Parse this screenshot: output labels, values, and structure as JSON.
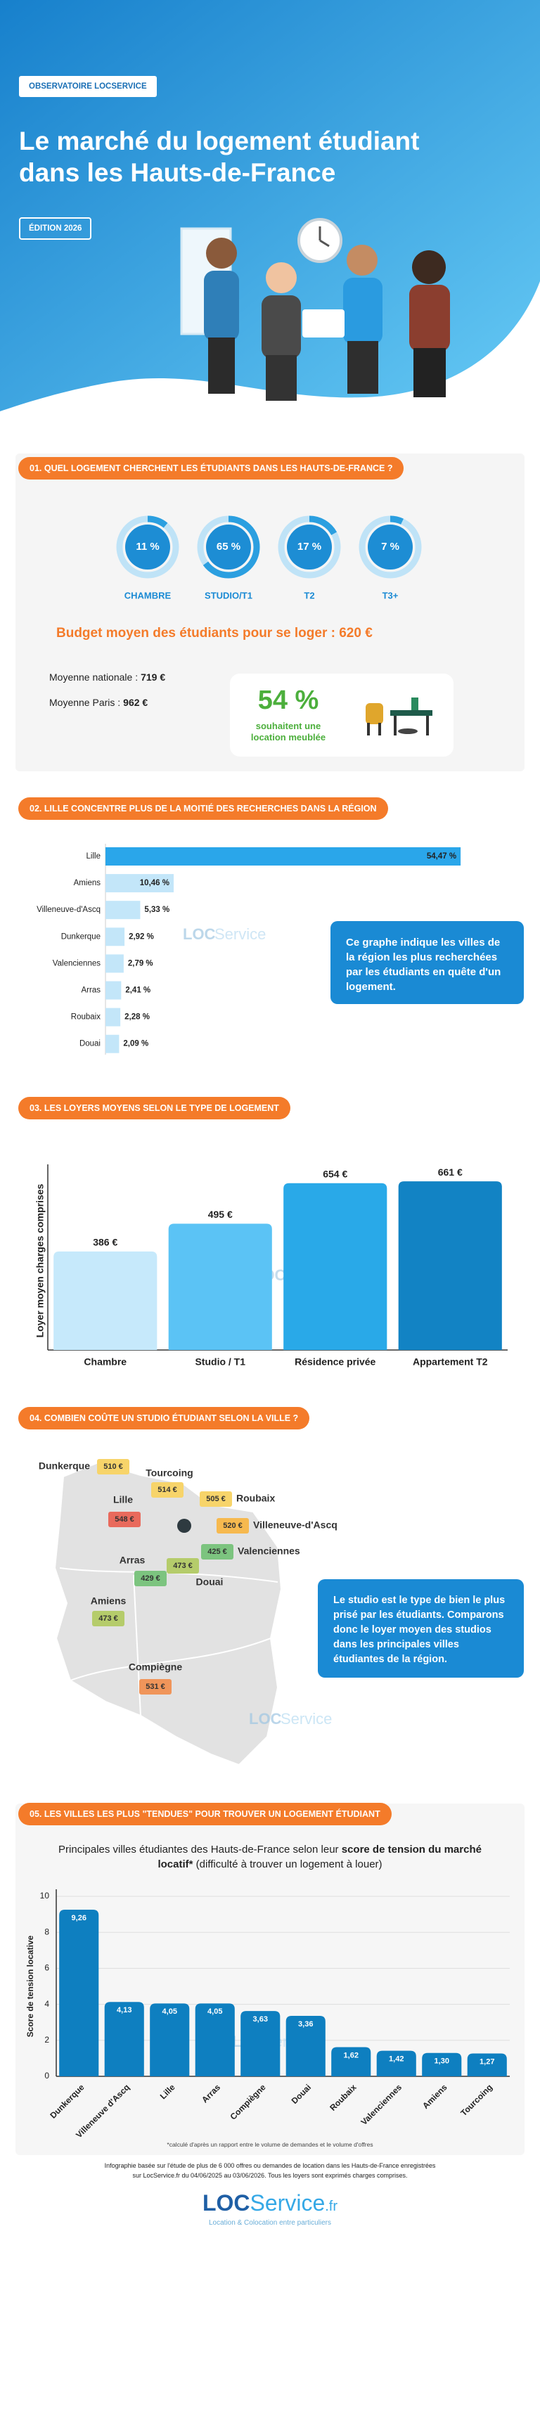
{
  "header": {
    "badge": "OBSERVATOIRE LOCSERVICE",
    "title_line1": "Le marché du logement étudiant",
    "title_line2": "dans les Hauts-de-France",
    "edition": "ÉDITION 2026"
  },
  "sections": [
    "01. QUEL LOGEMENT CHERCHENT LES ÉTUDIANTS DANS LES HAUTS-DE-FRANCE ?",
    "02. LILLE CONCENTRE PLUS DE LA MOITIÉ DES RECHERCHES DANS LA RÉGION",
    "03. LES LOYERS MOYENS SELON LE TYPE DE LOGEMENT",
    "04. COMBIEN COÛTE UN STUDIO ÉTUDIANT SELON LA VILLE ?",
    "05. LES VILLES LES PLUS \"TENDUES\" POUR TROUVER UN LOGEMENT ÉTUDIANT"
  ],
  "chart_data": [
    {
      "type": "ring",
      "categories": [
        "CHAMBRE",
        "STUDIO/T1",
        "T2",
        "T3+"
      ],
      "values": [
        11,
        65,
        17,
        7
      ],
      "value_labels": [
        "11 %",
        "65 %",
        "17 %",
        "7 %"
      ],
      "ylim": [
        0,
        100
      ],
      "color": "#2b9fe0"
    },
    {
      "type": "hbar",
      "categories": [
        "Lille",
        "Amiens",
        "Villeneuve-d'Ascq",
        "Dunkerque",
        "Valenciennes",
        "Arras",
        "Roubaix",
        "Douai"
      ],
      "values": [
        54.47,
        10.46,
        5.33,
        2.92,
        2.79,
        2.41,
        2.28,
        2.09
      ],
      "value_labels": [
        "54,47 %",
        "10,46 %",
        "5,33 %",
        "2,92 %",
        "2,79 %",
        "2,41 %",
        "2,28 %",
        "2,09 %"
      ],
      "xlim": [
        0,
        55
      ],
      "colors": [
        "#2aa6ea",
        "#c3e6f9",
        "#c3e6f9",
        "#c3e6f9",
        "#c3e6f9",
        "#c3e6f9",
        "#c3e6f9",
        "#c3e6f9"
      ]
    },
    {
      "type": "bar",
      "y_label": "Loyer moyen charges comprises",
      "categories": [
        "Chambre",
        "Studio / T1",
        "Résidence privée",
        "Appartement T2"
      ],
      "values": [
        386,
        495,
        654,
        661
      ],
      "value_labels": [
        "386 €",
        "495 €",
        "654 €",
        "661 €"
      ],
      "ylim": [
        0,
        700
      ],
      "colors": [
        "#c6e9fb",
        "#5bc3f5",
        "#29a9e8",
        "#1283c4"
      ]
    },
    {
      "type": "bar",
      "y_label": "Score de tension locative",
      "categories": [
        "Dunkerque",
        "Villeneuve d'Ascq",
        "Lille",
        "Arras",
        "Compiègne",
        "Douai",
        "Roubaix",
        "Valenciennes",
        "Amiens",
        "Tourcoing"
      ],
      "values": [
        9.26,
        4.13,
        4.05,
        4.05,
        3.63,
        3.36,
        1.62,
        1.42,
        1.3,
        1.27
      ],
      "value_labels": [
        "9,26",
        "4,13",
        "4,05",
        "4,05",
        "3,63",
        "3,36",
        "1,62",
        "1,42",
        "1,30",
        "1,27"
      ],
      "ylim": [
        0,
        10
      ],
      "yticks": [
        0,
        2,
        4,
        6,
        8,
        10
      ],
      "grid": true,
      "color": "#0e7fc0"
    }
  ],
  "budget": "Budget moyen des étudiants pour se loger : 620 €",
  "averages": [
    {
      "label": "Moyenne nationale :",
      "value": "719 €"
    },
    {
      "label": "Moyenne Paris :",
      "value": "962 €"
    }
  ],
  "furnished": {
    "value": "54 %",
    "text_line1": "souhaitent une",
    "text_line2": "location meublée"
  },
  "hbar_note": "Ce graphe indique les villes de la région les plus recherchées par les étudiants en quête d'un logement.",
  "map": {
    "cities": [
      {
        "name": "Dunkerque",
        "price": 510,
        "label": "510 €",
        "color": "#f7d46a"
      },
      {
        "name": "Tourcoing",
        "price": 514,
        "label": "514 €",
        "color": "#f7d46a"
      },
      {
        "name": "Roubaix",
        "price": 505,
        "label": "505 €",
        "color": "#f7d46a"
      },
      {
        "name": "Lille",
        "price": 548,
        "label": "548 €",
        "color": "#e96a5c"
      },
      {
        "name": "Villeneuve-d'Ascq",
        "price": 520,
        "label": "520 €",
        "color": "#f6b94f"
      },
      {
        "name": "Valenciennes",
        "price": 425,
        "label": "425 €",
        "color": "#7cc47f"
      },
      {
        "name": "Arras",
        "price": 429,
        "label": "429 €",
        "color": "#7cc47f"
      },
      {
        "name": "Douai",
        "price": 473,
        "label": "473 €",
        "color": "#b5cc6b"
      },
      {
        "name": "Amiens",
        "price": 473,
        "label": "473 €",
        "color": "#b5cc6b"
      },
      {
        "name": "Compiègne",
        "price": 531,
        "label": "531 €",
        "color": "#f0955a"
      }
    ],
    "note": "Le studio est le type de bien le plus prisé par les étudiants. Comparons donc le loyer moyen des studios dans les principales villes étudiantes de la région."
  },
  "tension_title": {
    "start": "Principales villes étudiantes des Hauts-de-France selon leur",
    "bold": "score de tension du marché locatif*",
    "end": "(difficulté à trouver un logement à louer)"
  },
  "footer": {
    "footnote": "*calculé d'après un rapport entre le volume de demandes et le volume d'offres",
    "source_line1": "Infographie basée sur l'étude de plus de 6 000 offres ou demandes de location dans les Hauts-de-France enregistrées",
    "source_line2": "sur LocService.fr du 04/06/2025 au 03/06/2026. Tous les loyers sont exprimés charges comprises.",
    "logo": [
      "LOC",
      "Service",
      ".fr"
    ],
    "tagline": "Location & Colocation entre particuliers"
  }
}
